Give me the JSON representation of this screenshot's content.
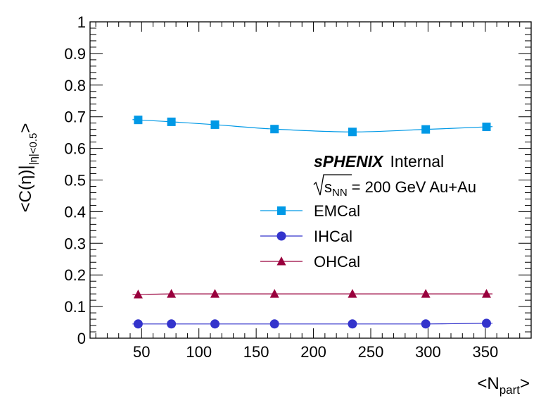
{
  "chart_data": {
    "type": "line",
    "title": "",
    "xlabel": {
      "base": "<N",
      "sub": "part",
      "close": ">"
    },
    "ylabel": {
      "base": "<C(η)|",
      "sub": "|η|<0.5",
      "close": ">"
    },
    "xlim": [
      5,
      390
    ],
    "ylim": [
      0,
      1
    ],
    "xticks": [
      50,
      100,
      150,
      200,
      250,
      300,
      350
    ],
    "yticks": [
      0,
      0.1,
      0.2,
      0.3,
      0.4,
      0.5,
      0.6,
      0.7,
      0.8,
      0.9,
      1
    ],
    "ytick_labels": [
      "0",
      "0.1",
      "0.2",
      "0.3",
      "0.4",
      "0.5",
      "0.6",
      "0.7",
      "0.8",
      "0.9",
      "1"
    ],
    "grid": false,
    "legend_position": "center",
    "x": [
      47,
      76,
      114,
      166,
      234,
      298,
      351
    ],
    "series": [
      {
        "name": "EMCal",
        "color": "#0099e6",
        "marker": "square",
        "values": [
          0.69,
          0.684,
          0.675,
          0.661,
          0.652,
          0.66,
          0.668
        ]
      },
      {
        "name": "IHCal",
        "color": "#3333cc",
        "marker": "circle",
        "values": [
          0.045,
          0.045,
          0.045,
          0.045,
          0.045,
          0.045,
          0.047
        ]
      },
      {
        "name": "OHCal",
        "color": "#99003d",
        "marker": "triangle",
        "values": [
          0.138,
          0.14,
          0.14,
          0.14,
          0.14,
          0.14,
          0.14
        ]
      }
    ],
    "annotations": {
      "brand": "sPHENIX",
      "brand_suffix": "Internal",
      "energy_sqrt": "s",
      "energy_sub": "NN",
      "energy_text": "= 200 GeV Au+Au"
    }
  }
}
